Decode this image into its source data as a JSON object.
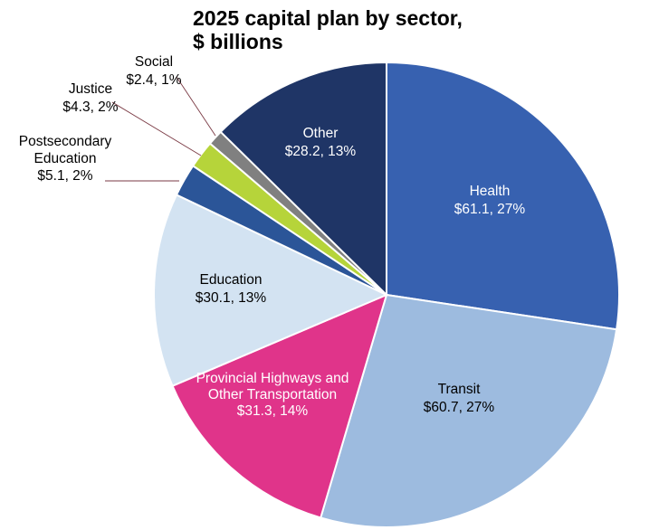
{
  "chart_data": {
    "type": "pie",
    "title": "2025 capital plan by sector,",
    "subtitle": "$ billions",
    "start": "12 o'clock",
    "direction": "clockwise",
    "slices": [
      {
        "name": "Health",
        "value": 61.1,
        "percent": "27%",
        "value_text": "$61.1, 27%",
        "color": "#3761b0",
        "label_color": "#ffffff",
        "label_position": "inside"
      },
      {
        "name": "Transit",
        "value": 60.7,
        "percent": "27%",
        "value_text": "$60.7, 27%",
        "color": "#9dbbdf",
        "label_color": "#000000",
        "label_position": "inside"
      },
      {
        "name": "Provincial Highways and Other Transportation",
        "value": 31.3,
        "percent": "14%",
        "name_lines": [
          "Provincial Highways and",
          "Other Transportation"
        ],
        "value_text": "$31.3, 14%",
        "color": "#e0348a",
        "label_color": "#ffffff",
        "label_position": "inside"
      },
      {
        "name": "Education",
        "value": 30.1,
        "percent": "13%",
        "value_text": "$30.1, 13%",
        "color": "#d3e3f2",
        "label_color": "#000000",
        "label_position": "inside"
      },
      {
        "name": "Postsecondary Education",
        "value": 5.1,
        "percent": "2%",
        "name_lines": [
          "Postsecondary",
          "Education"
        ],
        "value_text": "$5.1, 2%",
        "color": "#2b5598",
        "label_color": "#000000",
        "label_position": "outside"
      },
      {
        "name": "Justice",
        "value": 4.3,
        "percent": "2%",
        "value_text": "$4.3, 2%",
        "color": "#b6d43a",
        "label_color": "#000000",
        "label_position": "outside"
      },
      {
        "name": "Social",
        "value": 2.4,
        "percent": "1%",
        "value_text": "$2.4, 1%",
        "color": "#808080",
        "label_color": "#000000",
        "label_position": "outside"
      },
      {
        "name": "Other",
        "value": 28.2,
        "percent": "13%",
        "value_text": "$28.2, 13%",
        "color": "#1f3566",
        "label_color": "#ffffff",
        "label_position": "inside"
      }
    ]
  }
}
